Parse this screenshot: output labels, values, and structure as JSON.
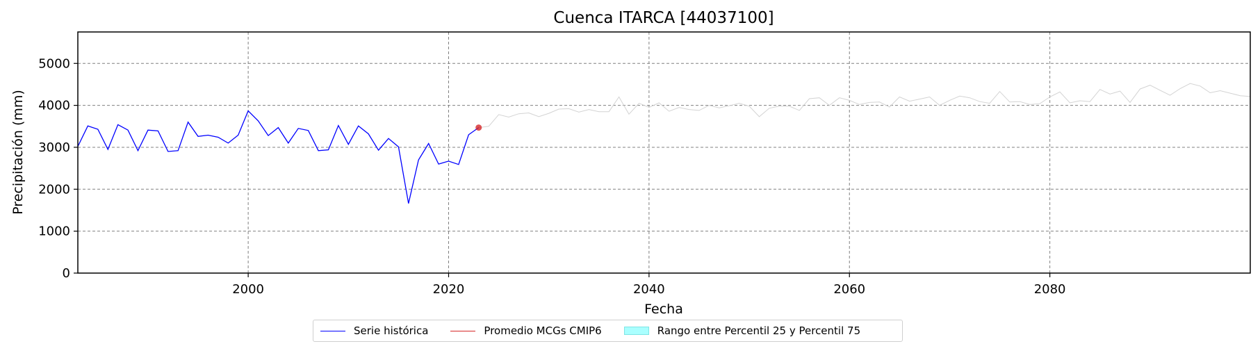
{
  "chart_data": {
    "type": "line",
    "title": "Cuenca ITARCA [44037100]",
    "xlabel": "Fecha",
    "ylabel": "Precipitación (mm)",
    "xlim": [
      1983,
      2100
    ],
    "ylim": [
      0,
      5750
    ],
    "xticks": [
      2000,
      2020,
      2040,
      2060,
      2080
    ],
    "yticks": [
      0,
      1000,
      2000,
      3000,
      4000,
      5000
    ],
    "grid": true,
    "legend_position": "bottom-center",
    "series": [
      {
        "name": "Serie histórica",
        "color": "#0000ff",
        "x": [
          1983,
          1984,
          1985,
          1986,
          1987,
          1988,
          1989,
          1990,
          1991,
          1992,
          1993,
          1994,
          1995,
          1996,
          1997,
          1998,
          1999,
          2000,
          2001,
          2002,
          2003,
          2004,
          2005,
          2006,
          2007,
          2008,
          2009,
          2010,
          2011,
          2012,
          2013,
          2014,
          2015,
          2016,
          2017,
          2018,
          2019,
          2020,
          2021,
          2022,
          2023
        ],
        "values": [
          3020,
          3510,
          3430,
          2950,
          3540,
          3410,
          2920,
          3410,
          3390,
          2900,
          2920,
          3600,
          3260,
          3290,
          3240,
          3100,
          3290,
          3870,
          3630,
          3280,
          3470,
          3100,
          3450,
          3400,
          2920,
          2940,
          3520,
          3070,
          3510,
          3320,
          2930,
          3210,
          3010,
          1660,
          2700,
          3090,
          2600,
          2670,
          2590,
          3300,
          3470
        ]
      },
      {
        "name": "Promedio MCGs CMIP6",
        "color": "#d62728",
        "x": [
          2023
        ],
        "values": [
          3470
        ]
      },
      {
        "name": "Rango entre Percentil 25 y Percentil 75",
        "color": "#aaffff",
        "x": [],
        "values": []
      },
      {
        "name": "",
        "color": "#d3d3d3",
        "x": [
          2023,
          2024,
          2025,
          2026,
          2027,
          2028,
          2029,
          2030,
          2031,
          2032,
          2033,
          2034,
          2035,
          2036,
          2037,
          2038,
          2039,
          2040,
          2041,
          2042,
          2043,
          2044,
          2045,
          2046,
          2047,
          2048,
          2049,
          2050,
          2051,
          2052,
          2053,
          2054,
          2055,
          2056,
          2057,
          2058,
          2059,
          2060,
          2061,
          2062,
          2063,
          2064,
          2065,
          2066,
          2067,
          2068,
          2069,
          2070,
          2071,
          2072,
          2073,
          2074,
          2075,
          2076,
          2077,
          2078,
          2079,
          2080,
          2081,
          2082,
          2083,
          2084,
          2085,
          2086,
          2087,
          2088,
          2089,
          2090,
          2091,
          2092,
          2093,
          2094,
          2095,
          2096,
          2097,
          2098,
          2099,
          2100
        ],
        "values": [
          3470,
          3500,
          3780,
          3720,
          3800,
          3820,
          3730,
          3810,
          3910,
          3920,
          3840,
          3900,
          3850,
          3850,
          4200,
          3790,
          4050,
          3950,
          4060,
          3860,
          3950,
          3900,
          3880,
          4000,
          3940,
          3990,
          4050,
          3980,
          3730,
          3930,
          3980,
          3980,
          3880,
          4160,
          4180,
          4000,
          4180,
          4120,
          4020,
          4070,
          4080,
          3960,
          4200,
          4100,
          4150,
          4200,
          4000,
          4120,
          4220,
          4180,
          4090,
          4050,
          4330,
          4080,
          4090,
          4020,
          4040,
          4200,
          4320,
          4060,
          4110,
          4090,
          4380,
          4270,
          4340,
          4070,
          4390,
          4480,
          4360,
          4240,
          4400,
          4520,
          4460,
          4300,
          4350,
          4290,
          4230,
          4210
        ]
      }
    ],
    "markers": [
      {
        "series": "Promedio MCGs CMIP6",
        "x": 2023,
        "y": 3470,
        "color": "#d62728"
      }
    ]
  }
}
